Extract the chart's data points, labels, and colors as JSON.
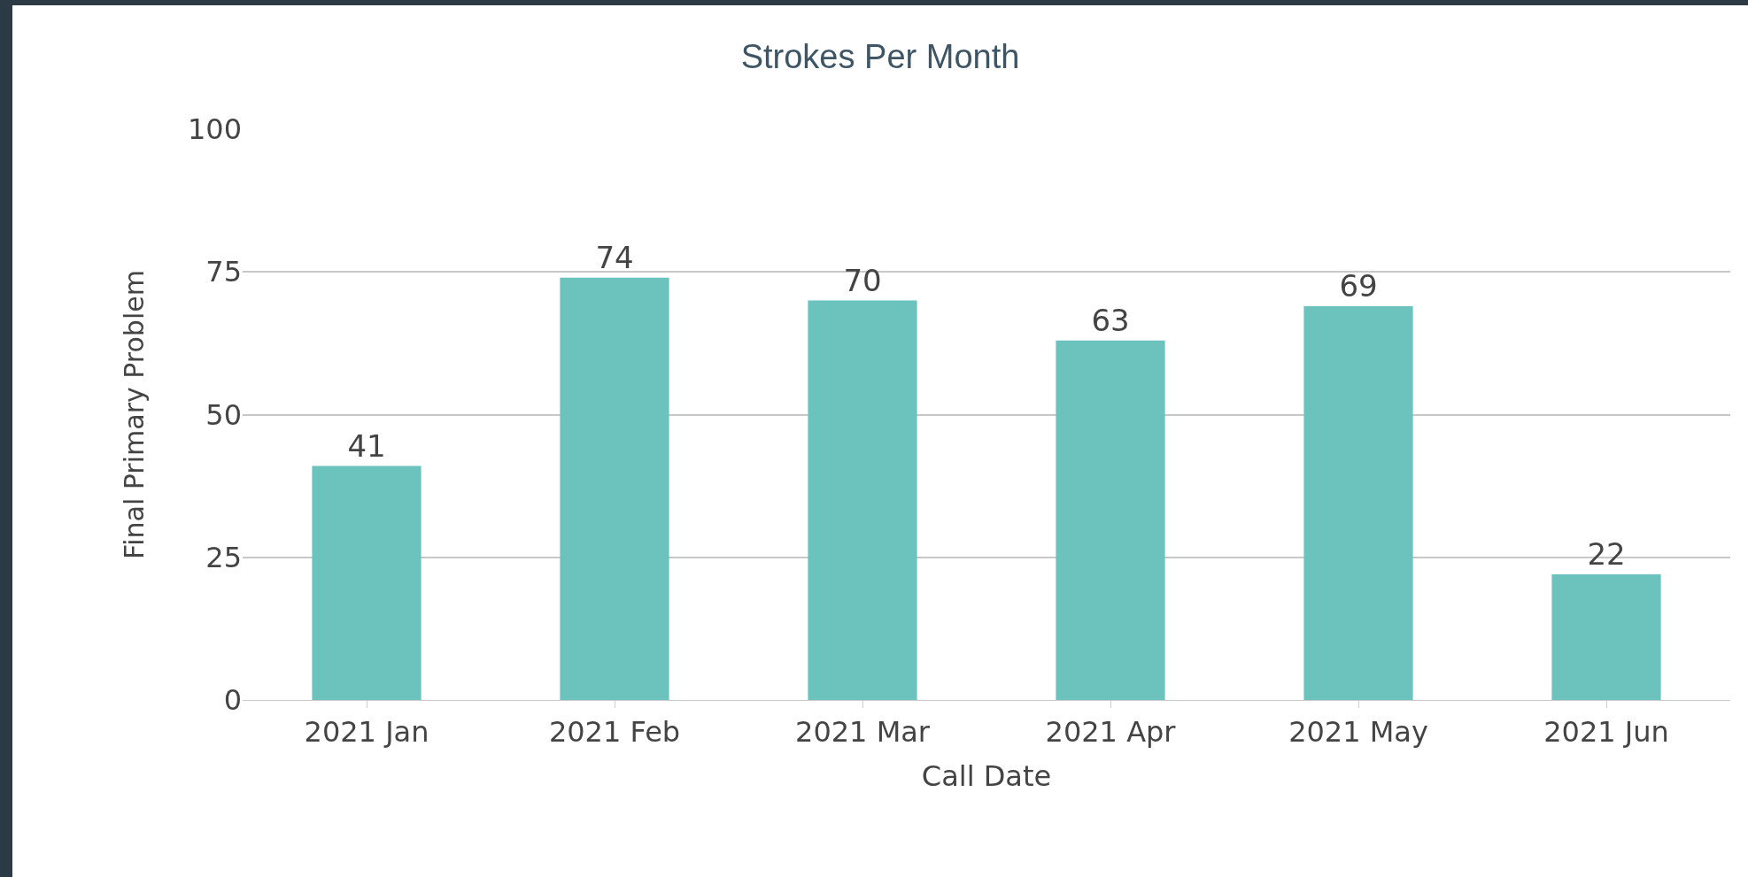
{
  "chart_data": {
    "type": "bar",
    "title": "Strokes Per Month",
    "xlabel": "Call Date",
    "ylabel": "Final Primary Problem",
    "categories": [
      "2021 Jan",
      "2021 Feb",
      "2021 Mar",
      "2021 Apr",
      "2021 May",
      "2021 Jun"
    ],
    "values": [
      41,
      74,
      70,
      63,
      69,
      22
    ],
    "color": "#6cc3bd",
    "ylim": [
      0,
      100
    ],
    "yticks": [
      0,
      25,
      50,
      75,
      100
    ],
    "grid": "y",
    "data_labels": true
  }
}
